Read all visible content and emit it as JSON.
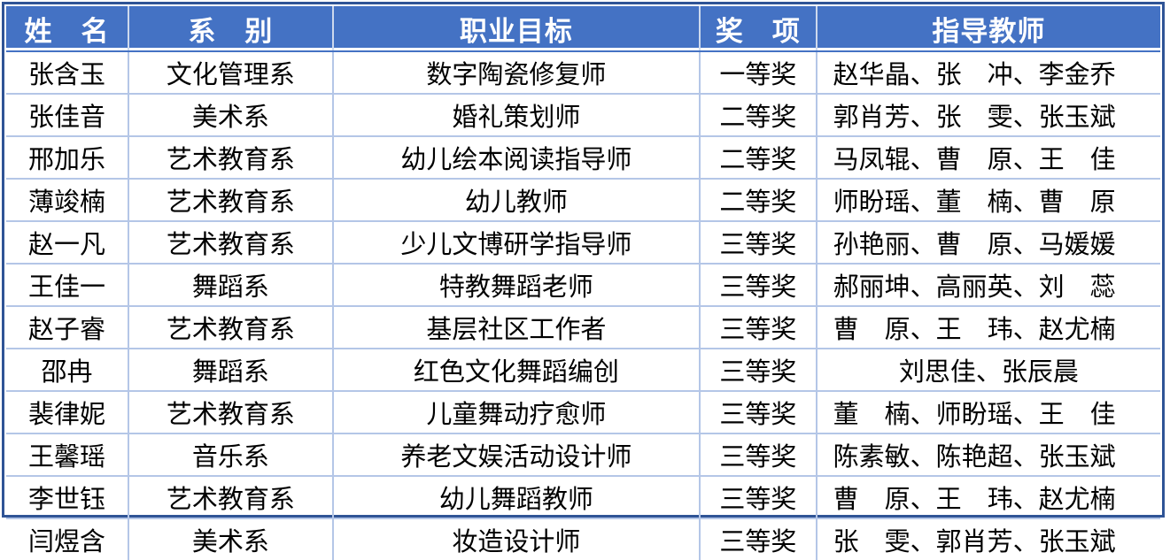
{
  "table": {
    "headers": [
      "姓　名",
      "系　别",
      "职业目标",
      "奖　项",
      "指导教师"
    ],
    "rows": [
      {
        "name": "张含玉",
        "department": "文化管理系",
        "career_goal": "数字陶瓷修复师",
        "award": "一等奖",
        "teachers": "赵华晶、张　冲、李金乔",
        "teachers_centered": false
      },
      {
        "name": "张佳音",
        "department": "美术系",
        "career_goal": "婚礼策划师",
        "award": "二等奖",
        "teachers": "郭肖芳、张　雯、张玉斌",
        "teachers_centered": false
      },
      {
        "name": "邢加乐",
        "department": "艺术教育系",
        "career_goal": "幼儿绘本阅读指导师",
        "award": "二等奖",
        "teachers": "马凤辊、曹　原、王　佳",
        "teachers_centered": false
      },
      {
        "name": "薄竣楠",
        "department": "艺术教育系",
        "career_goal": "幼儿教师",
        "award": "二等奖",
        "teachers": "师盼瑶、董　楠、曹　原",
        "teachers_centered": false
      },
      {
        "name": "赵一凡",
        "department": "艺术教育系",
        "career_goal": "少儿文博研学指导师",
        "award": "三等奖",
        "teachers": "孙艳丽、曹　原、马媛媛",
        "teachers_centered": false
      },
      {
        "name": "王佳一",
        "department": "舞蹈系",
        "career_goal": "特教舞蹈老师",
        "award": "三等奖",
        "teachers": "郝丽坤、高丽英、刘　蕊",
        "teachers_centered": false
      },
      {
        "name": "赵子睿",
        "department": "艺术教育系",
        "career_goal": "基层社区工作者",
        "award": "三等奖",
        "teachers": "曹　原、王　玮、赵尤楠",
        "teachers_centered": false
      },
      {
        "name": "邵冉",
        "department": "舞蹈系",
        "career_goal": "红色文化舞蹈编创",
        "award": "三等奖",
        "teachers": "刘思佳、张辰晨",
        "teachers_centered": true
      },
      {
        "name": "裴律妮",
        "department": "艺术教育系",
        "career_goal": "儿童舞动疗愈师",
        "award": "三等奖",
        "teachers": "董　楠、师盼瑶、王　佳",
        "teachers_centered": false
      },
      {
        "name": "王馨瑶",
        "department": "音乐系",
        "career_goal": "养老文娱活动设计师",
        "award": "三等奖",
        "teachers": "陈素敏、陈艳超、张玉斌",
        "teachers_centered": false
      },
      {
        "name": "李世钰",
        "department": "艺术教育系",
        "career_goal": "幼儿舞蹈教师",
        "award": "三等奖",
        "teachers": "曹　原、王　玮、赵尤楠",
        "teachers_centered": false
      },
      {
        "name": "闫煜含",
        "department": "美术系",
        "career_goal": "妆造设计师",
        "award": "三等奖",
        "teachers": "张　雯、郭肖芳、张玉斌",
        "teachers_centered": false
      }
    ],
    "colors": {
      "header_bg": "#4472C4",
      "header_text": "#FFFFFF",
      "outer_border": "#2F5496",
      "grid_line": "#B4C6E7",
      "body_text": "#000000"
    }
  }
}
